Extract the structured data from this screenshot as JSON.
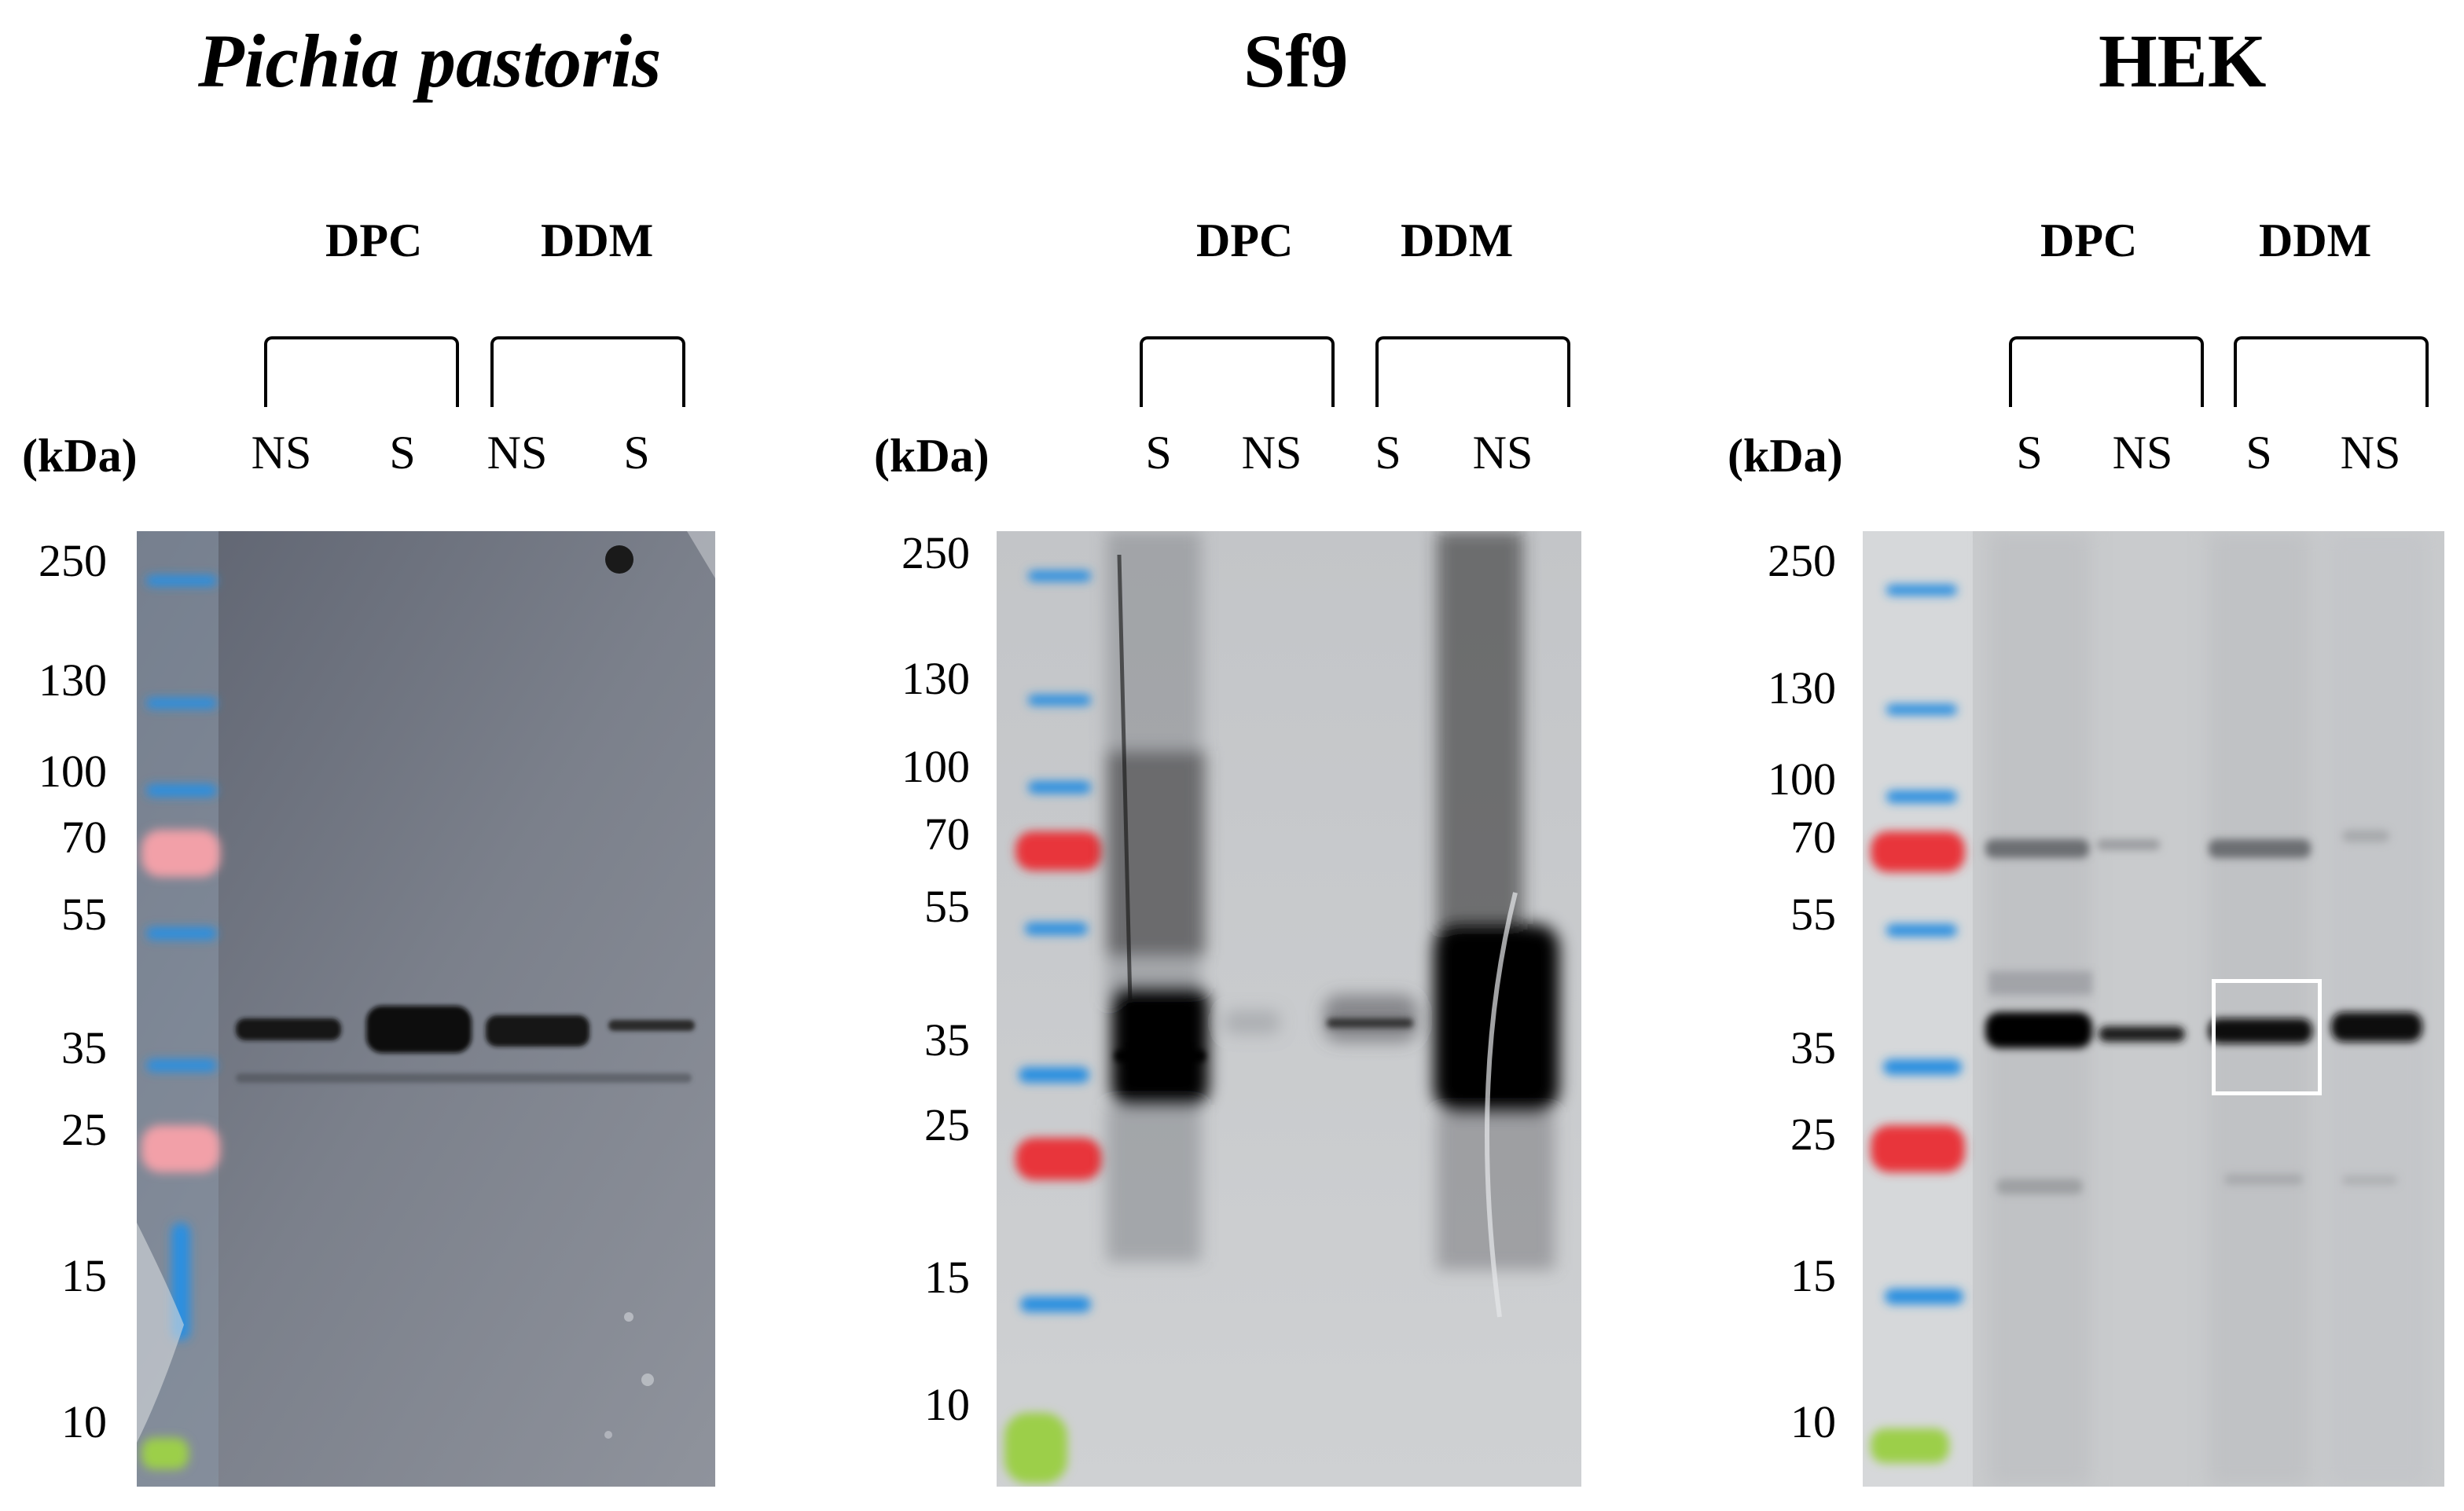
{
  "panels": [
    {
      "title": "Pichia pastoris",
      "title_italic": true,
      "unit_label": "(kDa)",
      "detergents": [
        "DPC",
        "DDM"
      ],
      "lanes": [
        "NS",
        "S",
        "NS",
        "S"
      ],
      "markers": [
        "250",
        "130",
        "100",
        "70",
        "55",
        "35",
        "25",
        "15",
        "10"
      ]
    },
    {
      "title": "Sf9",
      "title_italic": false,
      "unit_label": "(kDa)",
      "detergents": [
        "DPC",
        "DDM"
      ],
      "lanes": [
        "S",
        "NS",
        "S",
        "NS"
      ],
      "markers": [
        "250",
        "130",
        "100",
        "70",
        "55",
        "35",
        "25",
        "15",
        "10"
      ]
    },
    {
      "title": "HEK",
      "title_italic": false,
      "unit_label": "(kDa)",
      "detergents": [
        "DPC",
        "DDM"
      ],
      "lanes": [
        "S",
        "NS",
        "S",
        "NS"
      ],
      "markers": [
        "250",
        "130",
        "100",
        "70",
        "55",
        "35",
        "25",
        "15",
        "10"
      ],
      "highlight": "white box around DDM S band"
    }
  ],
  "colors": {
    "ladder_blue": "#2a8fe0",
    "ladder_red": "#e8353a",
    "ladder_pink": "#f2a0a8",
    "ladder_green": "#9ccf4a",
    "membrane_pichia": "#7f838e",
    "membrane_other": "#c8cacd"
  }
}
